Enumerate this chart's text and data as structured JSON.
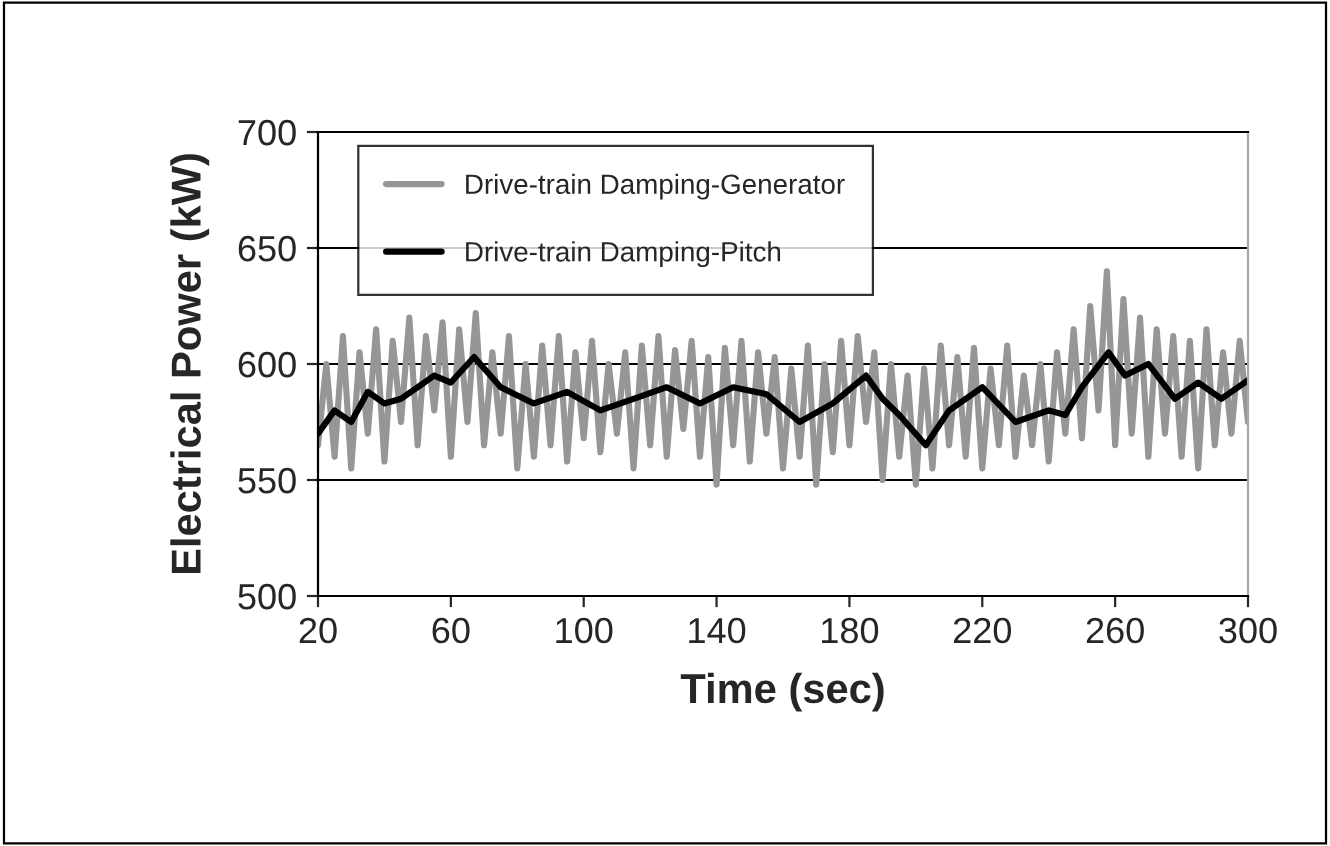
{
  "chart_data": {
    "type": "line",
    "xlabel": "Time (sec)",
    "ylabel": "Electrical Power (kW)",
    "xlim": [
      20,
      300
    ],
    "xticks": [
      20,
      60,
      100,
      140,
      180,
      220,
      260,
      300
    ],
    "ylim": [
      500,
      700
    ],
    "yticks": [
      500,
      550,
      600,
      650,
      700
    ],
    "grid": "y",
    "legend": "top",
    "marker": "none",
    "line_style": "solid",
    "series": [
      {
        "name": "Drive-train Damping-Generator",
        "color": "#969696",
        "x": [
          20,
          22.5,
          25,
          27.5,
          30,
          32.5,
          35,
          37.5,
          40,
          42.5,
          45,
          47.5,
          50,
          52.5,
          55,
          57.5,
          60,
          62.5,
          65,
          67.5,
          70,
          72.5,
          75,
          77.5,
          80,
          82.5,
          85,
          87.5,
          90,
          92.5,
          95,
          97.5,
          100,
          102.5,
          105,
          107.5,
          110,
          112.5,
          115,
          117.5,
          120,
          122.5,
          125,
          127.5,
          130,
          132.5,
          135,
          137.5,
          140,
          142.5,
          145,
          147.5,
          150,
          152.5,
          155,
          157.5,
          160,
          162.5,
          165,
          167.5,
          170,
          172.5,
          175,
          177.5,
          180,
          182.5,
          185,
          187.5,
          190,
          192.5,
          195,
          197.5,
          200,
          202.5,
          205,
          207.5,
          210,
          212.5,
          215,
          217.5,
          220,
          222.5,
          225,
          227.5,
          230,
          232.5,
          235,
          237.5,
          240,
          242.5,
          245,
          247.5,
          250,
          252.5,
          255,
          257.5,
          260,
          262.5,
          265,
          267.5,
          270,
          272.5,
          275,
          277.5,
          280,
          282.5,
          285,
          287.5,
          290,
          292.5,
          295,
          297.5,
          300
        ],
        "values": [
          565,
          600,
          560,
          612,
          555,
          605,
          570,
          615,
          558,
          610,
          575,
          620,
          565,
          612,
          580,
          618,
          560,
          615,
          575,
          622,
          565,
          605,
          570,
          612,
          555,
          600,
          560,
          608,
          565,
          612,
          558,
          605,
          568,
          610,
          562,
          600,
          570,
          605,
          555,
          608,
          565,
          612,
          560,
          606,
          572,
          610,
          560,
          603,
          548,
          607,
          565,
          610,
          558,
          605,
          570,
          603,
          555,
          598,
          560,
          608,
          548,
          600,
          562,
          610,
          565,
          612,
          575,
          605,
          550,
          600,
          560,
          595,
          548,
          598,
          555,
          608,
          565,
          603,
          560,
          607,
          555,
          598,
          565,
          608,
          560,
          595,
          565,
          600,
          558,
          605,
          570,
          615,
          568,
          625,
          580,
          640,
          565,
          628,
          570,
          620,
          560,
          615,
          570,
          612,
          560,
          610,
          555,
          615,
          565,
          605,
          570,
          610,
          575
        ]
      },
      {
        "name": "Drive-train Damping-Pitch",
        "color": "#000000",
        "x": [
          20,
          25,
          30,
          35,
          40,
          45,
          50,
          55,
          60,
          67,
          75,
          85,
          95,
          105,
          115,
          125,
          135,
          145,
          155,
          165,
          175,
          185,
          190,
          195,
          203,
          210,
          220,
          230,
          240,
          245,
          250,
          258,
          263,
          270,
          278,
          285,
          292,
          300
        ],
        "values": [
          570,
          580,
          575,
          588,
          583,
          585,
          590,
          595,
          592,
          603,
          590,
          583,
          588,
          580,
          585,
          590,
          583,
          590,
          587,
          575,
          583,
          595,
          585,
          578,
          565,
          580,
          590,
          575,
          580,
          578,
          590,
          605,
          595,
          600,
          585,
          592,
          585,
          593
        ]
      }
    ]
  }
}
